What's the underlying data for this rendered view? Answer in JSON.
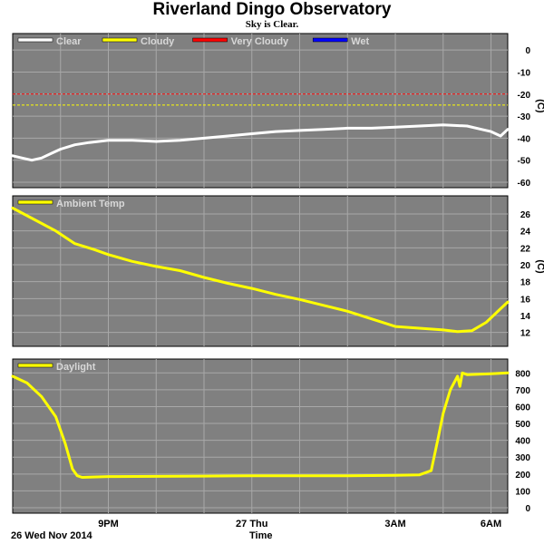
{
  "header": {
    "title": "Riverland Dingo Observatory",
    "subtitle": "Sky is Clear."
  },
  "footer": {
    "date_label": "26 Wed Nov 2014",
    "x_axis_label": "Time"
  },
  "colors": {
    "panel_bg": "#808080",
    "grid": "#a8a8a8",
    "clear": "#ffffff",
    "cloudy": "#ffff00",
    "very_cloudy": "#ff0000",
    "wet": "#0000ff",
    "ambient": "#ffff00",
    "daylight": "#ffff00"
  },
  "chart_data": [
    {
      "type": "line",
      "ylabel": "(C)",
      "ylim": [
        -60,
        5
      ],
      "yticks": [
        "0",
        "-10",
        "-20",
        "-30",
        "-40",
        "-50",
        "-60"
      ],
      "legend": [
        "Clear",
        "Cloudy",
        "Very Cloudy",
        "Wet"
      ],
      "thresholds": {
        "very_cloudy": -20,
        "cloudy": -25
      },
      "series": [
        {
          "name": "Clear",
          "x": [
            0,
            0.2,
            0.4,
            0.6,
            0.8,
            1.0,
            1.3,
            1.6,
            2.0,
            2.5,
            3.0,
            3.5,
            4.0,
            4.5,
            5.0,
            5.5,
            6.0,
            6.5,
            7.0,
            7.5,
            8.0,
            8.5,
            9.0,
            9.5,
            9.8,
            10.0,
            10.2,
            10.35
          ],
          "y": [
            -48,
            -49,
            -50,
            -49,
            -47,
            -45,
            -43,
            -42,
            -41,
            -41,
            -41.5,
            -41,
            -40,
            -39,
            -38,
            -37,
            -36.5,
            -36,
            -35.5,
            -35.5,
            -35,
            -34.5,
            -34,
            -34.5,
            -36,
            -37,
            -39,
            -36
          ]
        }
      ]
    },
    {
      "type": "line",
      "ylabel": "(C)",
      "ylim": [
        11,
        27.5
      ],
      "yticks": [
        "26",
        "24",
        "22",
        "20",
        "18",
        "16",
        "14",
        "12"
      ],
      "legend": [
        "Ambient Temp"
      ],
      "series": [
        {
          "name": "Ambient Temp",
          "x": [
            0,
            0.5,
            0.9,
            1.3,
            1.7,
            2.0,
            2.5,
            3.0,
            3.5,
            4.0,
            4.5,
            5.0,
            5.5,
            6.0,
            6.5,
            7.0,
            7.5,
            8.0,
            8.5,
            9.0,
            9.3,
            9.6,
            9.9,
            10.2,
            10.35
          ],
          "y": [
            26.7,
            25.2,
            24.0,
            22.5,
            21.8,
            21.2,
            20.4,
            19.8,
            19.3,
            18.5,
            17.8,
            17.2,
            16.5,
            15.9,
            15.2,
            14.5,
            13.6,
            12.7,
            12.5,
            12.3,
            12.1,
            12.2,
            13.2,
            14.8,
            15.6
          ]
        }
      ]
    },
    {
      "type": "line",
      "ylim": [
        0,
        850
      ],
      "yticks": [
        "800",
        "700",
        "600",
        "500",
        "400",
        "300",
        "200",
        "100",
        "0"
      ],
      "legend": [
        "Daylight"
      ],
      "series": [
        {
          "name": "Daylight",
          "x": [
            0,
            0.3,
            0.6,
            0.9,
            1.1,
            1.25,
            1.35,
            1.45,
            1.6,
            2.0,
            3.0,
            4.0,
            5.0,
            6.0,
            7.0,
            8.0,
            8.5,
            8.75,
            8.9,
            9.0,
            9.15,
            9.3,
            9.35,
            9.4,
            9.5,
            10.0,
            10.35
          ],
          "y": [
            780,
            740,
            660,
            540,
            380,
            230,
            190,
            180,
            182,
            185,
            186,
            188,
            190,
            190,
            190,
            192,
            195,
            220,
            420,
            560,
            700,
            780,
            720,
            800,
            790,
            795,
            800
          ]
        }
      ]
    }
  ],
  "x_axis": {
    "xlim": [
      0,
      10.35
    ],
    "ticks": [
      {
        "x": 1.0,
        "label": ""
      },
      {
        "x": 2.0,
        "label": "9PM"
      },
      {
        "x": 3.0,
        "label": ""
      },
      {
        "x": 4.0,
        "label": ""
      },
      {
        "x": 5.0,
        "label": "27 Thu"
      },
      {
        "x": 6.0,
        "label": ""
      },
      {
        "x": 7.0,
        "label": ""
      },
      {
        "x": 8.0,
        "label": "3AM"
      },
      {
        "x": 9.0,
        "label": ""
      },
      {
        "x": 10.0,
        "label": "6AM"
      }
    ]
  }
}
